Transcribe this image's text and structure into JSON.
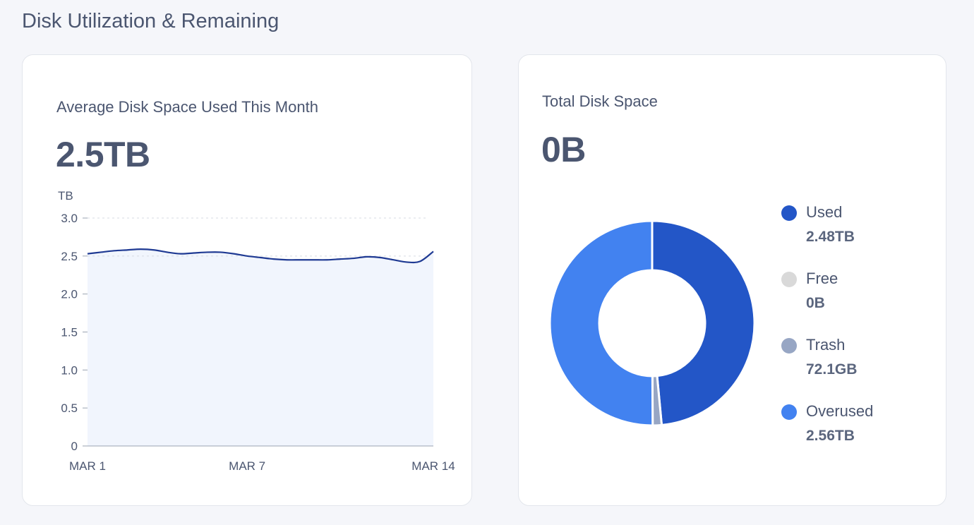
{
  "section": {
    "title": "Disk Utilization & Remaining"
  },
  "left_card": {
    "title": "Average Disk Space Used This Month",
    "value": "2.5TB"
  },
  "right_card": {
    "title": "Total Disk Space",
    "value": "0B"
  },
  "colors": {
    "line": "#1f3a93",
    "area_fill": "#f1f5fd",
    "grid": "#d7dbe3",
    "used": "#2356c7",
    "free": "#d9d9d9",
    "trash": "#97a6c4",
    "overused": "#4282f0"
  },
  "legend": [
    {
      "label": "Used",
      "value": "2.48TB",
      "color_key": "used"
    },
    {
      "label": "Free",
      "value": "0B",
      "color_key": "free"
    },
    {
      "label": "Trash",
      "value": "72.1GB",
      "color_key": "trash"
    },
    {
      "label": "Overused",
      "value": "2.56TB",
      "color_key": "overused"
    }
  ],
  "chart_data": [
    {
      "type": "area",
      "ylabel": "TB",
      "ylim": [
        0,
        3.0
      ],
      "yticks": [
        "0",
        "0.5",
        "1.0",
        "1.5",
        "2.0",
        "2.5",
        "3.0"
      ],
      "xticks": [
        "MAR 1",
        "MAR 7",
        "MAR 14"
      ],
      "grid": "dashed at 2.5 and 3.0",
      "x": [
        1,
        1.5,
        2,
        2.5,
        3,
        3.5,
        4,
        4.5,
        5,
        5.5,
        6,
        6.5,
        7,
        7.5,
        8,
        8.5,
        9,
        9.5,
        10,
        10.5,
        11,
        11.5,
        12,
        12.5,
        13,
        13.5,
        14
      ],
      "series": [
        {
          "values": [
            2.53,
            2.55,
            2.57,
            2.58,
            2.59,
            2.58,
            2.55,
            2.53,
            2.54,
            2.55,
            2.55,
            2.53,
            2.5,
            2.48,
            2.46,
            2.45,
            2.45,
            2.45,
            2.45,
            2.46,
            2.47,
            2.49,
            2.48,
            2.45,
            2.42,
            2.43,
            2.56
          ]
        }
      ]
    },
    {
      "type": "pie",
      "style": "donut",
      "slices": [
        {
          "label": "Used",
          "value": 2.48
        },
        {
          "label": "Free",
          "value": 0
        },
        {
          "label": "Trash",
          "value": 0.0721
        },
        {
          "label": "Overused",
          "value": 2.56
        }
      ]
    }
  ]
}
